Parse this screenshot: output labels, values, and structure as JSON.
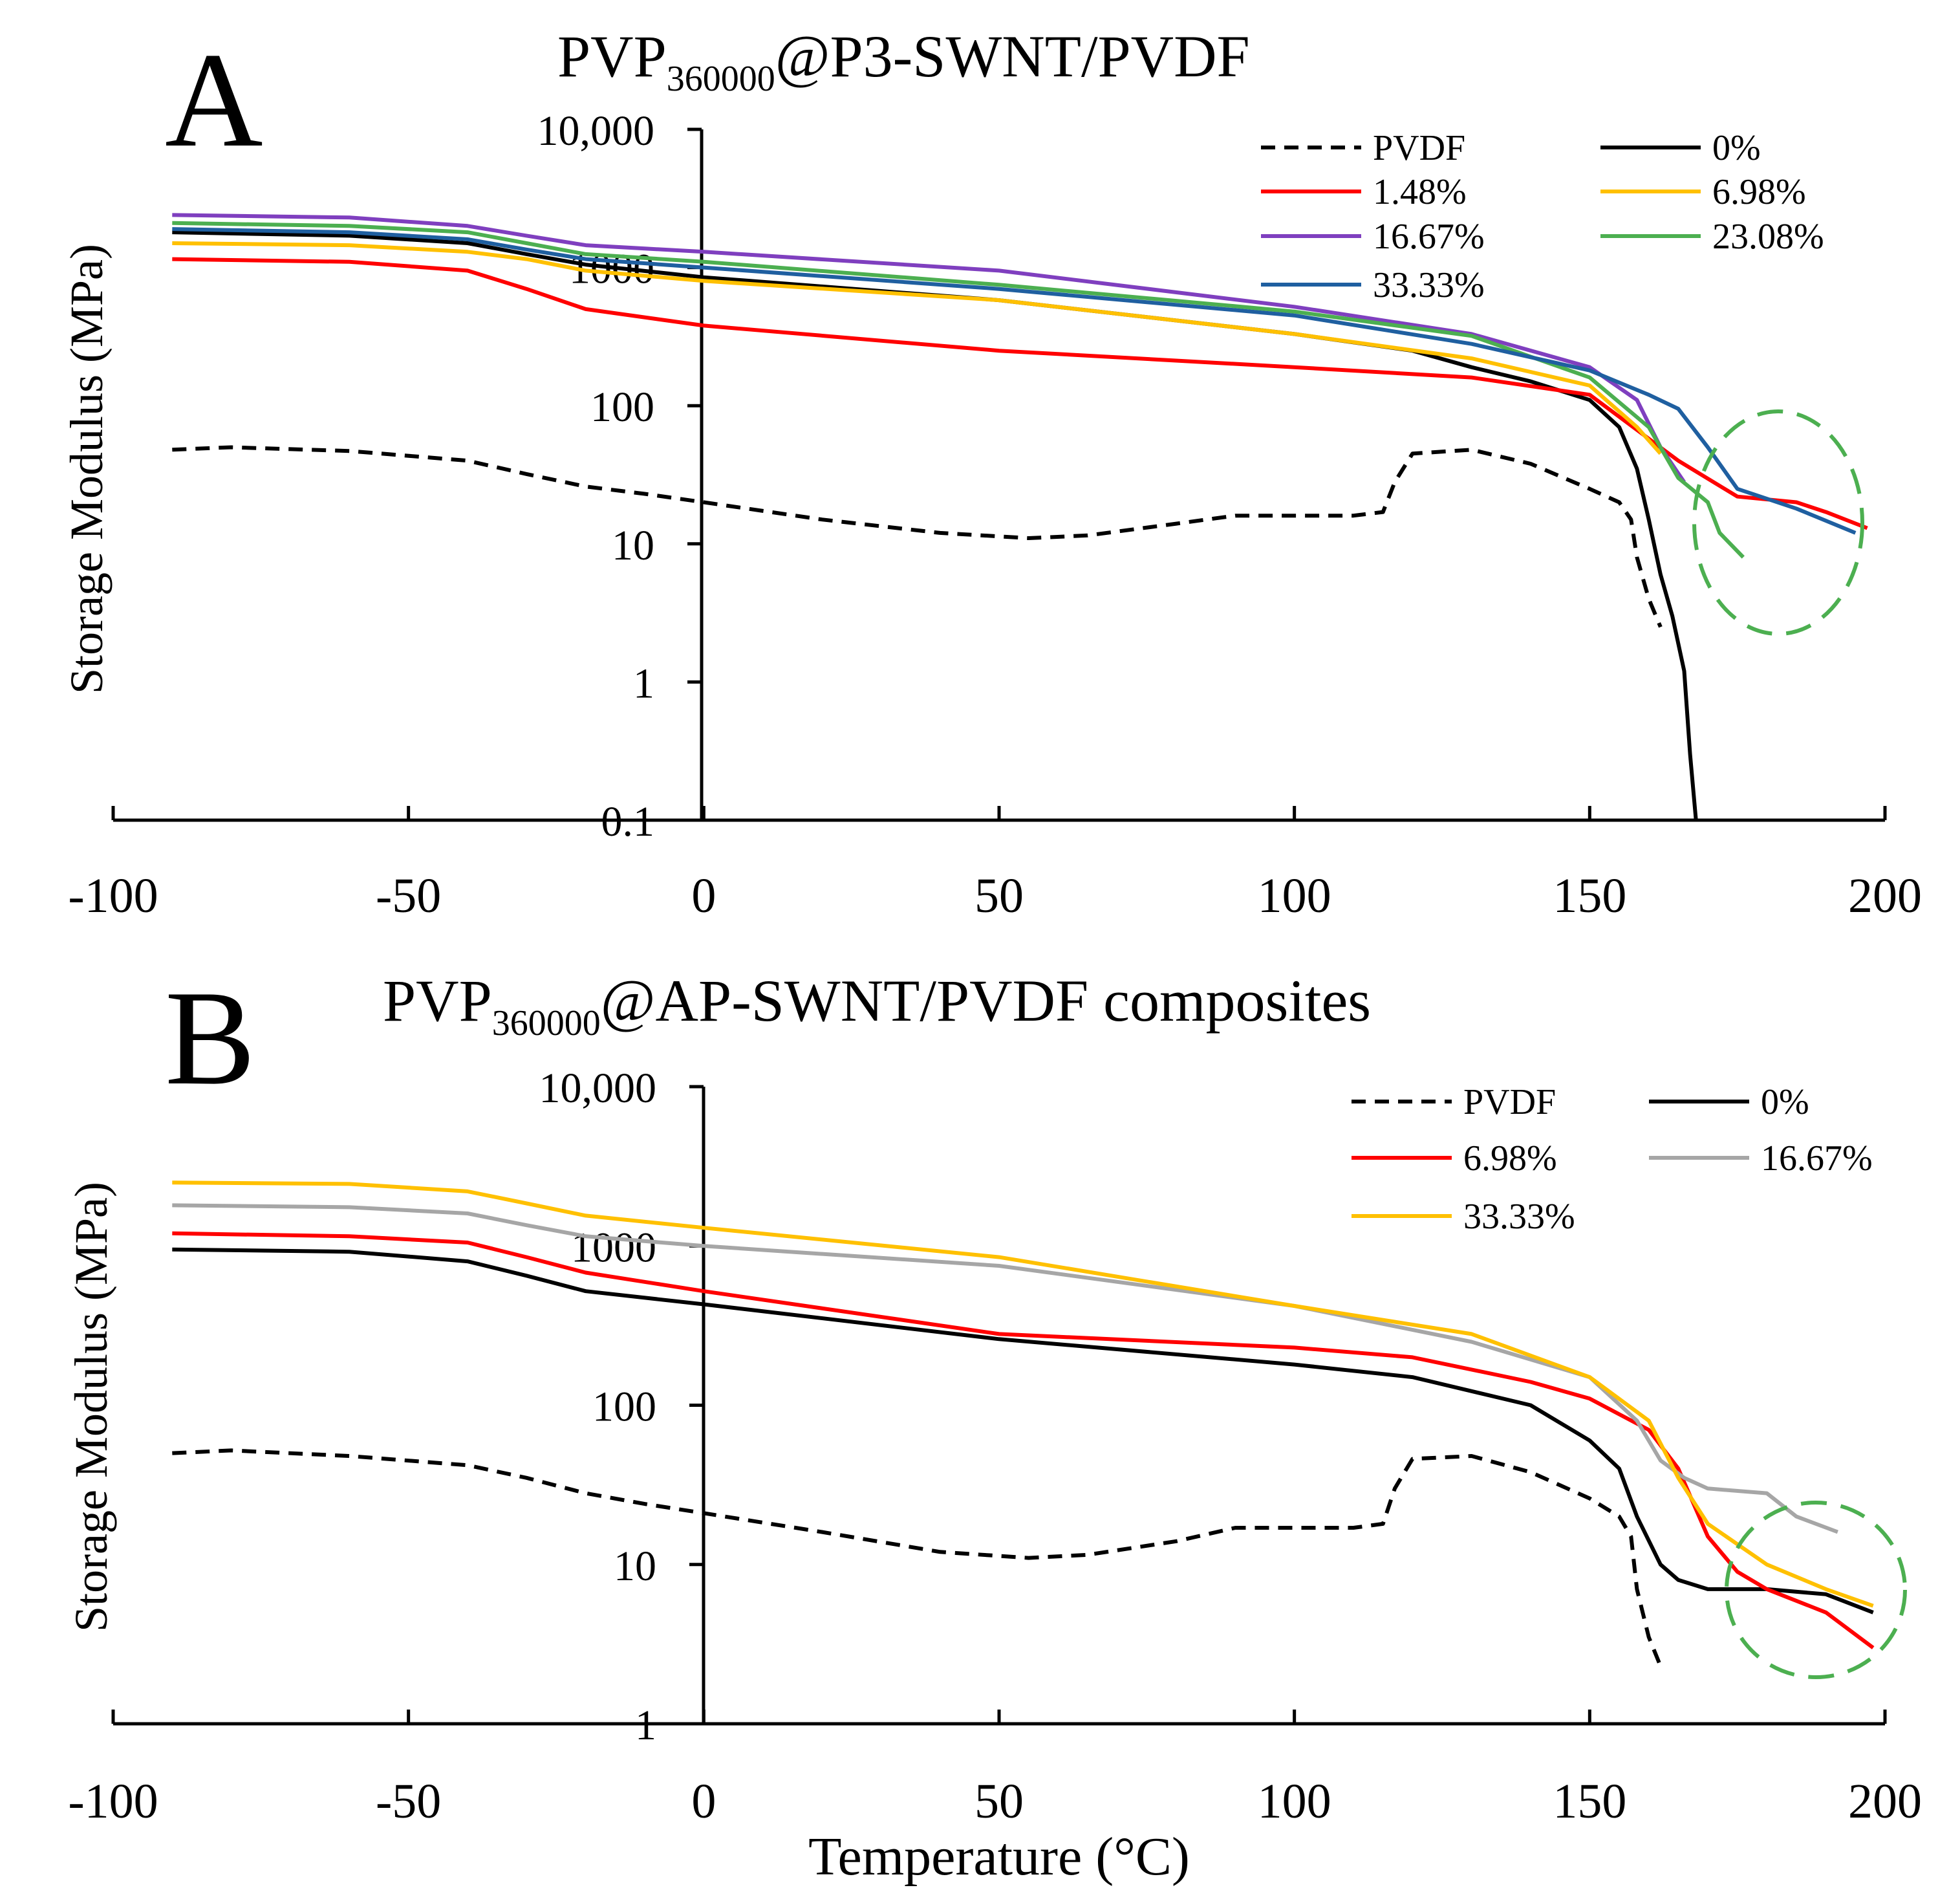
{
  "figure": {
    "xlabel": "Temperature (°C)",
    "ylabel": "Storage Modulus (MPa)"
  },
  "chart_data": [
    {
      "type": "line",
      "panel": "A",
      "title_main": "PVP",
      "title_sub": "360000",
      "title_rest": "@P3-SWNT/PVDF",
      "xlabel": "Temperature (°C)",
      "ylabel": "Storage Modulus (MPa)",
      "xlim": [
        -100,
        200
      ],
      "xticks": [
        -100,
        -50,
        0,
        50,
        100,
        150,
        200
      ],
      "xtick_labels": [
        "-100",
        "-50",
        "0",
        "50",
        "100",
        "150",
        "200"
      ],
      "yscale": "log",
      "ylim": [
        0.1,
        10000
      ],
      "yticks": [
        0.1,
        1,
        10,
        100,
        1000,
        10000
      ],
      "ytick_labels": [
        "0.1",
        "1",
        "10",
        "100",
        "1000",
        "10,000"
      ],
      "annotation": {
        "type": "dashed-ellipse",
        "color": "#4caf50",
        "center": [
          183,
          20
        ],
        "note": "high-temperature region highlighted"
      },
      "series": [
        {
          "name": "PVDF",
          "color": "#000000",
          "dash": true,
          "x": [
            -90,
            -80,
            -60,
            -40,
            -30,
            -20,
            -10,
            0,
            20,
            40,
            55,
            65,
            80,
            90,
            100,
            110,
            115,
            117,
            120,
            130,
            140,
            150,
            155,
            157,
            158,
            160,
            162
          ],
          "y": [
            48,
            50,
            47,
            40,
            32,
            26,
            23,
            20,
            15,
            12,
            11,
            11.5,
            14,
            16,
            16,
            16,
            17,
            28,
            45,
            48,
            38,
            25,
            20,
            15,
            8,
            4,
            2.5
          ]
        },
        {
          "name": "0%",
          "color": "#000000",
          "dash": false,
          "x": [
            -90,
            -60,
            -40,
            -30,
            -20,
            0,
            50,
            100,
            120,
            130,
            140,
            150,
            155,
            158,
            160,
            162,
            164,
            166,
            167,
            168
          ],
          "y": [
            1800,
            1700,
            1500,
            1250,
            1050,
            850,
            580,
            330,
            250,
            190,
            150,
            110,
            70,
            35,
            15,
            6,
            3,
            1.2,
            0.3,
            0.1
          ]
        },
        {
          "name": "1.48%",
          "color": "#ff0000",
          "dash": false,
          "x": [
            -90,
            -60,
            -40,
            -30,
            -20,
            0,
            50,
            100,
            130,
            150,
            165,
            175,
            185,
            190,
            197
          ],
          "y": [
            1150,
            1100,
            950,
            700,
            500,
            380,
            250,
            190,
            160,
            120,
            40,
            22,
            20,
            17,
            13
          ]
        },
        {
          "name": "6.98%",
          "color": "#ffc000",
          "dash": false,
          "x": [
            -90,
            -60,
            -40,
            -30,
            -20,
            0,
            50,
            100,
            130,
            150,
            158,
            162
          ],
          "y": [
            1500,
            1450,
            1300,
            1150,
            950,
            800,
            580,
            330,
            220,
            140,
            70,
            45
          ]
        },
        {
          "name": "16.67%",
          "color": "#7f3fbf",
          "dash": false,
          "x": [
            -90,
            -60,
            -40,
            -30,
            -20,
            0,
            50,
            100,
            130,
            150,
            158,
            162,
            166
          ],
          "y": [
            2400,
            2300,
            2000,
            1700,
            1450,
            1300,
            950,
            520,
            330,
            190,
            110,
            50,
            28
          ]
        },
        {
          "name": "23.08%",
          "color": "#4caf50",
          "dash": false,
          "x": [
            -90,
            -60,
            -40,
            -30,
            -20,
            0,
            50,
            100,
            130,
            150,
            160,
            165,
            170,
            172,
            176
          ],
          "y": [
            2100,
            2000,
            1800,
            1500,
            1250,
            1100,
            750,
            480,
            320,
            160,
            70,
            30,
            20,
            12,
            8
          ]
        },
        {
          "name": "33.33%",
          "color": "#1f5fa0",
          "dash": false,
          "x": [
            -90,
            -60,
            -40,
            -30,
            -20,
            0,
            50,
            100,
            130,
            150,
            160,
            165,
            170,
            175,
            185,
            195
          ],
          "y": [
            1900,
            1800,
            1600,
            1350,
            1150,
            1000,
            700,
            450,
            280,
            180,
            120,
            95,
            50,
            25,
            18,
            12
          ]
        }
      ]
    },
    {
      "type": "line",
      "panel": "B",
      "title_main": "PVP",
      "title_sub": "360000",
      "title_rest": "@AP-SWNT/PVDF composites",
      "xlabel": "Temperature (°C)",
      "ylabel": "Storage Modulus (MPa)",
      "xlim": [
        -100,
        200
      ],
      "xticks": [
        -100,
        -50,
        0,
        50,
        100,
        150,
        200
      ],
      "xtick_labels": [
        "-100",
        "-50",
        "0",
        "50",
        "100",
        "150",
        "200"
      ],
      "yscale": "log",
      "ylim": [
        1,
        10000
      ],
      "yticks": [
        1,
        10,
        100,
        1000,
        10000
      ],
      "ytick_labels": [
        "1",
        "10",
        "100",
        "1000",
        "10,000"
      ],
      "annotation": {
        "type": "dashed-ellipse",
        "color": "#4caf50",
        "center": [
          187,
          5
        ],
        "note": "high-temperature region highlighted"
      },
      "series": [
        {
          "name": "PVDF",
          "color": "#000000",
          "dash": true,
          "x": [
            -90,
            -80,
            -60,
            -40,
            -30,
            -20,
            -10,
            0,
            20,
            40,
            55,
            65,
            80,
            90,
            100,
            110,
            115,
            117,
            120,
            130,
            140,
            150,
            155,
            157,
            158,
            160,
            162
          ],
          "y": [
            50,
            52,
            48,
            42,
            35,
            28,
            24,
            21,
            16,
            12,
            11,
            11.5,
            14,
            17,
            17,
            17,
            18,
            30,
            46,
            48,
            38,
            26,
            20,
            15,
            7,
            3.5,
            2.3
          ]
        },
        {
          "name": "0%",
          "color": "#000000",
          "dash": false,
          "x": [
            -90,
            -60,
            -40,
            -30,
            -20,
            0,
            50,
            100,
            120,
            140,
            150,
            155,
            158,
            162,
            165,
            170,
            180,
            190,
            198
          ],
          "y": [
            950,
            920,
            800,
            650,
            520,
            430,
            260,
            180,
            150,
            100,
            60,
            40,
            20,
            10,
            8,
            7,
            7,
            6.5,
            5
          ]
        },
        {
          "name": "6.98%",
          "color": "#ff0000",
          "dash": false,
          "x": [
            -90,
            -60,
            -40,
            -30,
            -20,
            0,
            50,
            100,
            120,
            140,
            150,
            160,
            165,
            170,
            175,
            180,
            190,
            198
          ],
          "y": [
            1200,
            1150,
            1050,
            850,
            680,
            520,
            280,
            230,
            200,
            140,
            110,
            70,
            40,
            15,
            9,
            7,
            5,
            3
          ]
        },
        {
          "name": "16.67%",
          "color": "#a6a6a6",
          "dash": false,
          "x": [
            -90,
            -60,
            -40,
            -30,
            -20,
            0,
            50,
            100,
            130,
            150,
            158,
            162,
            166,
            170,
            180,
            185,
            192
          ],
          "y": [
            1800,
            1750,
            1600,
            1350,
            1150,
            1000,
            750,
            420,
            250,
            150,
            80,
            45,
            35,
            30,
            28,
            20,
            16
          ]
        },
        {
          "name": "33.33%",
          "color": "#ffc000",
          "dash": false,
          "x": [
            -90,
            -60,
            -40,
            -30,
            -20,
            0,
            50,
            100,
            130,
            150,
            160,
            165,
            170,
            180,
            190,
            198
          ],
          "y": [
            2500,
            2450,
            2200,
            1850,
            1550,
            1300,
            850,
            420,
            280,
            150,
            80,
            35,
            18,
            10,
            7,
            5.5
          ]
        }
      ]
    }
  ]
}
